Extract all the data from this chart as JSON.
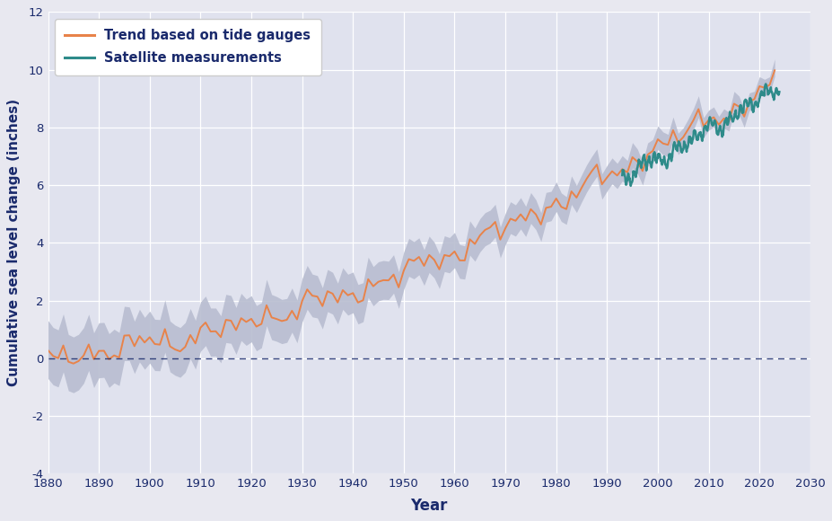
{
  "xlabel": "Year",
  "ylabel": "Cumulative sea level change (inches)",
  "xlim": [
    1880,
    2030
  ],
  "ylim": [
    -4,
    12
  ],
  "xticks": [
    1880,
    1890,
    1900,
    1910,
    1920,
    1930,
    1940,
    1950,
    1960,
    1970,
    1980,
    1990,
    2000,
    2010,
    2020,
    2030
  ],
  "yticks": [
    -4,
    -2,
    0,
    2,
    4,
    6,
    8,
    10,
    12
  ],
  "fig_bg_color": "#e8e8f0",
  "plot_bg_color": "#e0e2ee",
  "tide_color": "#e8834a",
  "satellite_color": "#2e8b8a",
  "band_color": "#b8bdd0",
  "zero_line_color": "#1a2a6c",
  "legend_tide": "Trend based on tide gauges",
  "legend_satellite": "Satellite measurements"
}
